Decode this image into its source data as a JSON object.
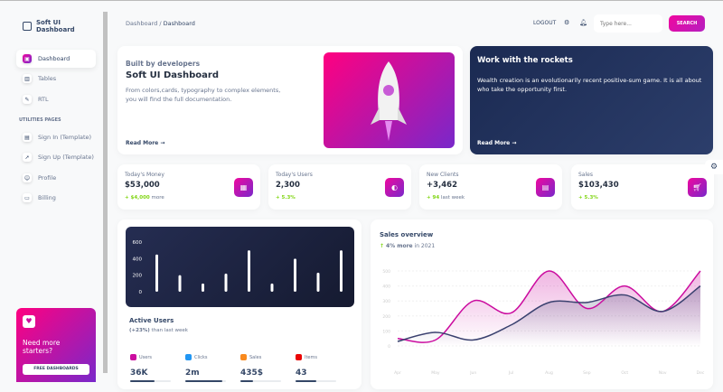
{
  "sidebar": {
    "brand": "Soft UI Dashboard",
    "items": [
      {
        "label": "Dashboard",
        "icon": "shop-icon"
      },
      {
        "label": "Tables",
        "icon": "chart-icon"
      },
      {
        "label": "RTL",
        "icon": "tools-icon"
      }
    ],
    "section": "UTILITIES PAGES",
    "items2": [
      {
        "label": "Sign In (Template)",
        "icon": "document-icon"
      },
      {
        "label": "Sign Up (Template)",
        "icon": "rocket-icon"
      },
      {
        "label": "Profile",
        "icon": "user-icon"
      },
      {
        "label": "Billing",
        "icon": "credit-card-icon"
      }
    ],
    "promo": {
      "title": "Need more starters?",
      "button": "FREE DASHBOARDS"
    }
  },
  "header": {
    "crumb_root": "Dashboard",
    "crumb_sep": "/",
    "crumb_current": "Dashboard",
    "logout": "LOGOUT",
    "search_placeholder": "Type here...",
    "search_button": "SEARCH"
  },
  "hero": {
    "subtitle": "Built by developers",
    "title": "Soft UI Dashboard",
    "desc": "From colors,cards, typography to complex elements, you will find the full documentation.",
    "read_more": "Read More"
  },
  "rockets": {
    "title": "Work with the rockets",
    "desc": "Wealth creation is an evolutionarily recent positive-sum game. It is all about who take the opportunity first.",
    "read_more": "Read More"
  },
  "stats": [
    {
      "label": "Today's Money",
      "value": "$53,000",
      "change": "+ $4,000",
      "suffix": " more",
      "icon": "money-icon"
    },
    {
      "label": "Today's Users",
      "value": "2,300",
      "change": "+ 5.3%",
      "suffix": "",
      "icon": "globe-icon"
    },
    {
      "label": "New Clients",
      "value": "+3,462",
      "change": "+ 94",
      "suffix": " last week",
      "icon": "document-icon"
    },
    {
      "label": "Sales",
      "value": "$103,430",
      "change": "+ 5.3%",
      "suffix": "",
      "icon": "cart-icon"
    }
  ],
  "active_users": {
    "title": "Active Users",
    "change": "(+23%)",
    "suffix": " than last week",
    "metrics": [
      {
        "label": "Users",
        "value": "36K",
        "progress": 60,
        "color": "#cb0c9f"
      },
      {
        "label": "Clicks",
        "value": "2m",
        "progress": 90,
        "color": "#2196f3"
      },
      {
        "label": "Sales",
        "value": "435$",
        "progress": 30,
        "color": "#f98a1e"
      },
      {
        "label": "Items",
        "value": "43",
        "progress": 50,
        "color": "#ea0606"
      }
    ]
  },
  "sales_overview": {
    "title": "Sales overview",
    "change": "4% more",
    "suffix": " in 2021"
  },
  "chart_data": [
    {
      "type": "bar",
      "categories": [
        "",
        "",
        "",
        "",
        "",
        "",
        "",
        "",
        ""
      ],
      "values": [
        450,
        200,
        100,
        220,
        500,
        100,
        400,
        230,
        500
      ],
      "yticks": [
        0,
        200,
        400,
        600
      ],
      "ylim": [
        0,
        600
      ],
      "grid": false,
      "color": "#ffffff"
    },
    {
      "type": "area",
      "categories": [
        "Apr",
        "May",
        "Jun",
        "Jul",
        "Aug",
        "Sep",
        "Oct",
        "Nov",
        "Dec"
      ],
      "yticks": [
        0,
        100,
        200,
        300,
        400,
        500
      ],
      "ylim": [
        0,
        500
      ],
      "grid": true,
      "series": [
        {
          "values": [
            50,
            40,
            300,
            220,
            500,
            250,
            400,
            230,
            500
          ],
          "color": "#cb0c9f"
        },
        {
          "values": [
            30,
            90,
            40,
            140,
            290,
            290,
            340,
            230,
            400
          ],
          "color": "#3a416f"
        }
      ]
    }
  ]
}
